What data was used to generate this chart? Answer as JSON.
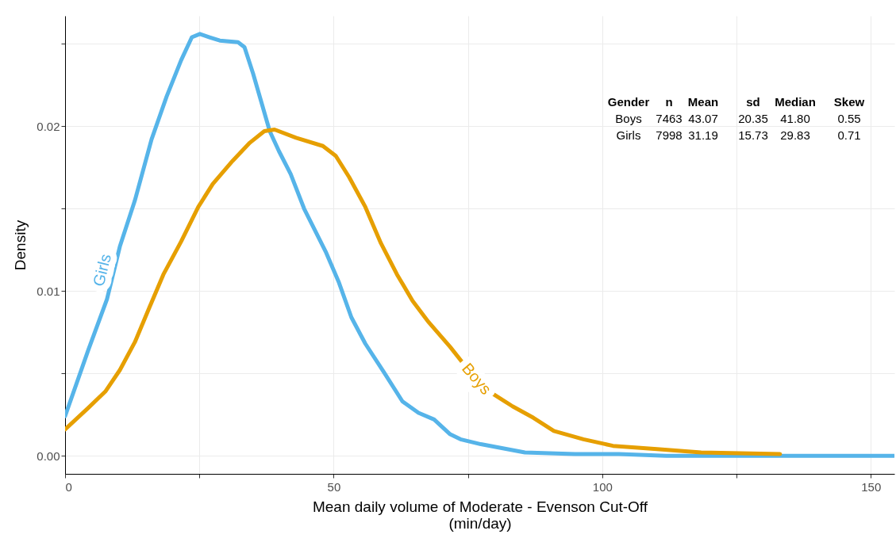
{
  "chart_data": {
    "type": "line",
    "xlabel": "Mean daily volume of Moderate - Evenson Cut-Off\n(min/day)",
    "ylabel": "Density",
    "xlim": [
      0,
      154.4
    ],
    "ylim": [
      -0.0011,
      0.0267
    ],
    "xticks": [
      0,
      {
        "value": 25,
        "label": null
      },
      50,
      {
        "value": 75,
        "label": null
      },
      100,
      {
        "value": 125,
        "label": null
      },
      150
    ],
    "yticks": [
      {
        "value": 0,
        "label": "0.00"
      },
      {
        "value": 0.005,
        "label": null
      },
      {
        "value": 0.01,
        "label": "0.01"
      },
      {
        "value": 0.015,
        "label": null
      },
      {
        "value": 0.02,
        "label": "0.02"
      },
      {
        "value": 0.025,
        "label": null
      }
    ],
    "grid": true,
    "legend": false,
    "annotations": [
      "Gender",
      "n",
      "Mean",
      "sd",
      "Median",
      "Skew",
      "Boys",
      "7463",
      "43.07",
      "20.35",
      "41.80",
      "0.55",
      "Girls",
      "7998",
      "31.19",
      "15.73",
      "29.83",
      "0.71"
    ],
    "series": [
      {
        "name": "Girls",
        "color": "#56b4e9",
        "x": [
          0,
          4.3,
          7.8,
          10.2,
          13.0,
          16.1,
          18.9,
          21.6,
          23.6,
          25.1,
          26.9,
          28.8,
          32.2,
          33.4,
          35.0,
          36.6,
          38.1,
          39.8,
          42.0,
          44.5,
          48.5,
          51.0,
          53.3,
          55.9,
          59.3,
          62.8,
          65.8,
          68.7,
          71.7,
          73.6,
          77.4,
          85.6,
          94.9,
          103.1,
          111.9,
          120.9,
          154.4
        ],
        "values": [
          0.0024,
          0.0064,
          0.0095,
          0.0127,
          0.0155,
          0.0192,
          0.0218,
          0.024,
          0.0254,
          0.0256,
          0.0254,
          0.0252,
          0.0251,
          0.0248,
          0.0232,
          0.0214,
          0.0197,
          0.0185,
          0.0171,
          0.015,
          0.0124,
          0.0105,
          0.0084,
          0.0068,
          0.0051,
          0.0033,
          0.0026,
          0.0022,
          0.0013,
          0.001,
          0.0007,
          0.0002,
          0.0001,
          0.0001,
          0.0,
          0.0,
          0.0
        ]
      },
      {
        "name": "Boys",
        "color": "#e69f00",
        "x": [
          0,
          4.3,
          7.5,
          10.2,
          13.0,
          15.7,
          18.3,
          21.6,
          24.8,
          27.5,
          31.2,
          34.4,
          37.1,
          39.0,
          43.0,
          48.0,
          50.4,
          52.9,
          55.9,
          58.8,
          61.8,
          64.7,
          67.7,
          71.7,
          75.1,
          78.0,
          83.3,
          87.2,
          91.0,
          96.5,
          102.0,
          110.2,
          118.4,
          133.1
        ],
        "values": [
          0.0016,
          0.0029,
          0.0039,
          0.0052,
          0.0069,
          0.009,
          0.011,
          0.013,
          0.0151,
          0.0165,
          0.0179,
          0.019,
          0.0197,
          0.0198,
          0.0193,
          0.0188,
          0.0182,
          0.0169,
          0.0151,
          0.0129,
          0.011,
          0.0094,
          0.0081,
          0.0066,
          0.0052,
          0.0041,
          0.003,
          0.0023,
          0.0015,
          0.001,
          0.0006,
          0.0004,
          0.0002,
          0.0001
        ]
      }
    ]
  }
}
